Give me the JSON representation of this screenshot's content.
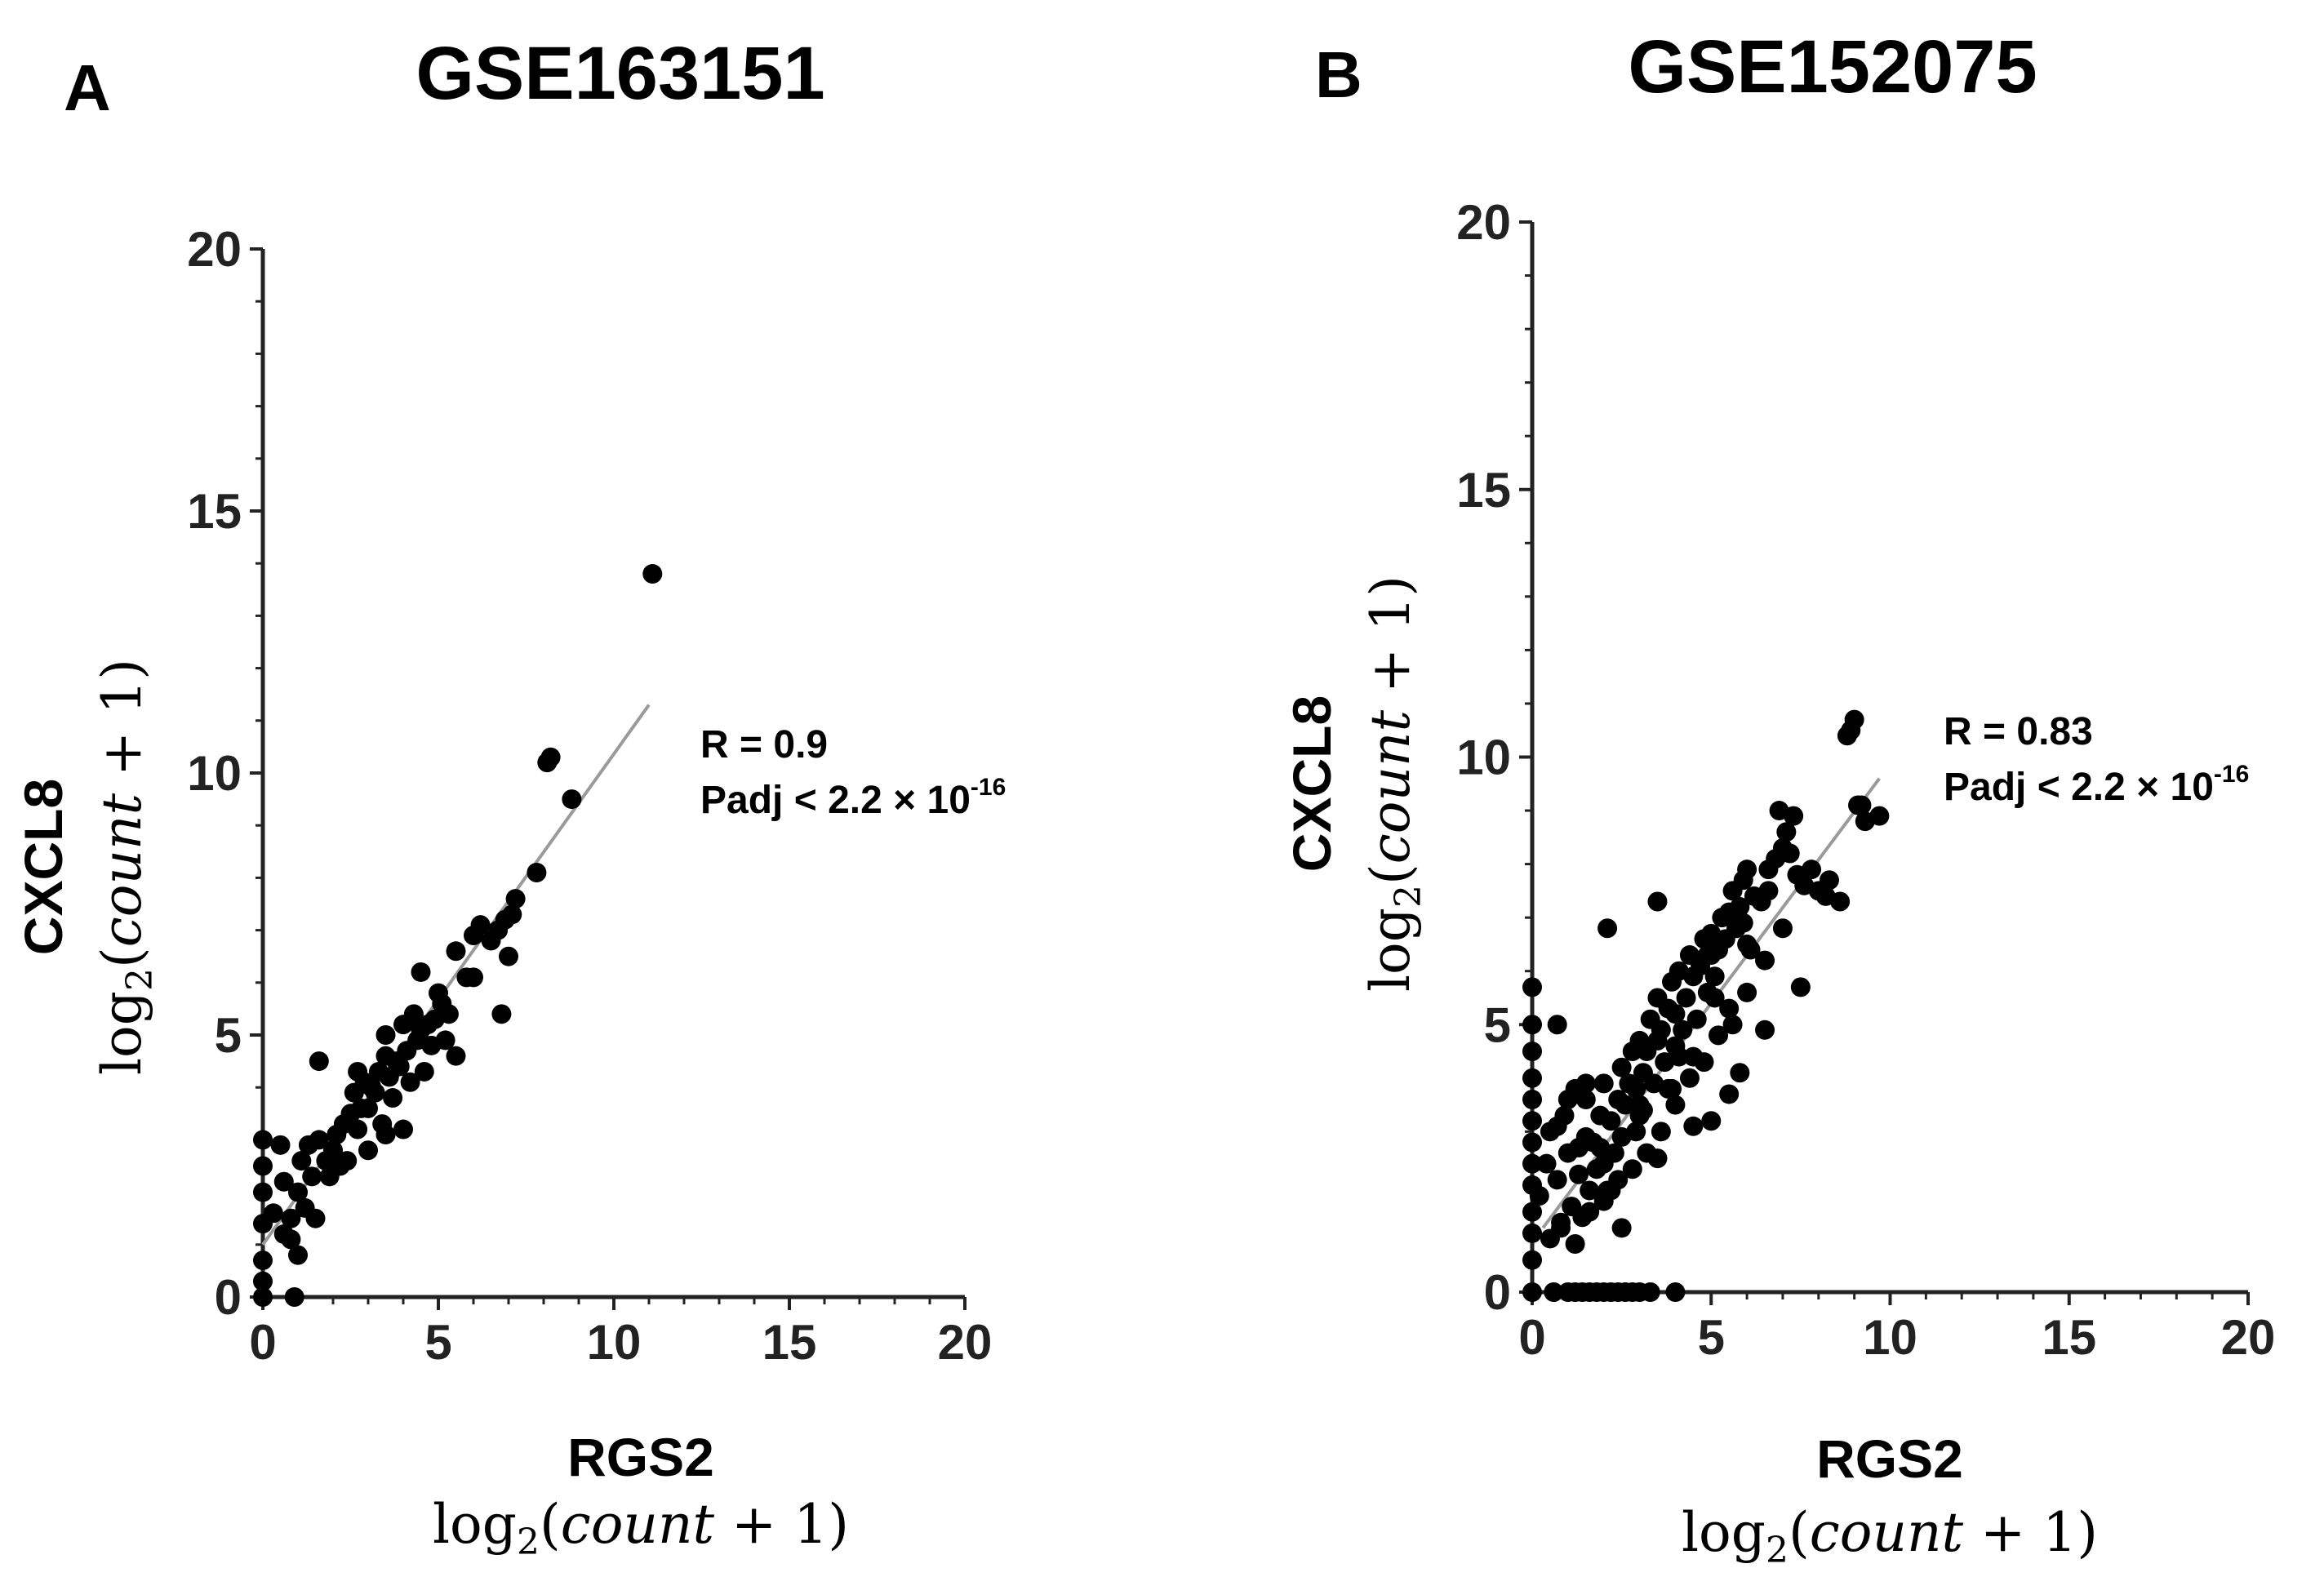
{
  "figure_labels": [
    "A",
    "B"
  ],
  "chart_data": [
    {
      "type": "scatter",
      "panel": "A",
      "title": "GSE163151",
      "xlabel": "RGS2",
      "ylabel": "CXCL8",
      "unit_label": "log2(count + 1)",
      "xlim": [
        0,
        20
      ],
      "ylim": [
        0,
        20
      ],
      "xticks": [
        0,
        5,
        10,
        15,
        20
      ],
      "yticks": [
        0,
        5,
        10,
        15,
        20
      ],
      "stats": {
        "r": "R = 0.9",
        "padj_base": "Padj < 2.2 × 10",
        "padj_exp": "-16"
      },
      "fit_line": {
        "x": [
          0,
          11
        ],
        "y": [
          1.0,
          11.3
        ]
      },
      "x": [
        0,
        0,
        0,
        0,
        0,
        0,
        0,
        0.3,
        0.5,
        0.6,
        0.8,
        1,
        1,
        1.1,
        1.2,
        1.3,
        1.4,
        1.5,
        1.6,
        1.8,
        1.9,
        2,
        2.1,
        2.2,
        2.3,
        2.4,
        2.5,
        2.6,
        2.7,
        2.8,
        2.9,
        3,
        3,
        3.1,
        3.2,
        3.3,
        3.4,
        3.5,
        3.5,
        3.6,
        3.7,
        3.8,
        3.9,
        4,
        4.1,
        4.2,
        4.3,
        4.4,
        4.5,
        4.6,
        4.7,
        4.8,
        4.9,
        5,
        5.1,
        5.2,
        5.3,
        5.5,
        5.8,
        6,
        6.2,
        6.5,
        6.7,
        6.9,
        7,
        7.1,
        1.6,
        2.7,
        3.5,
        4,
        4.5,
        5.5,
        6,
        6.8,
        7.2,
        7.8,
        8.1,
        8.2,
        8.8,
        11.1,
        0.9,
        0.6,
        0.8
      ],
      "y": [
        0,
        0.7,
        1.4,
        2,
        2.5,
        3,
        0.3,
        1.6,
        2.9,
        2.2,
        1.5,
        2,
        0.8,
        2.6,
        1.7,
        2.9,
        2.3,
        1.5,
        3,
        2.6,
        2.3,
        2.8,
        3.1,
        2.5,
        3.3,
        2.6,
        3.5,
        3.9,
        3.2,
        3.6,
        4.1,
        2.8,
        3.6,
        4,
        3.9,
        4.3,
        3.3,
        4.6,
        5,
        4.2,
        3.8,
        4.5,
        4.4,
        5.2,
        4.7,
        4.1,
        5.4,
        4.9,
        5.1,
        4.3,
        5.2,
        4.8,
        5.3,
        5.8,
        5.6,
        4.9,
        5.4,
        6.6,
        6.1,
        6.9,
        7.1,
        6.8,
        7,
        7.2,
        6.5,
        7.3,
        4.5,
        4.3,
        3.1,
        3.2,
        6.2,
        4.6,
        6.1,
        5.4,
        7.6,
        8.1,
        10.2,
        10.3,
        9.5,
        13.8,
        0,
        1.2,
        1.1
      ]
    },
    {
      "type": "scatter",
      "panel": "B",
      "title": "GSE152075",
      "xlabel": "RGS2",
      "ylabel": "CXCL8",
      "unit_label": "log2(count + 1)",
      "xlim": [
        0,
        20
      ],
      "ylim": [
        0,
        20
      ],
      "xticks": [
        0,
        5,
        10,
        15,
        20
      ],
      "yticks": [
        0,
        5,
        10,
        15,
        20
      ],
      "stats": {
        "r": "R = 0.83",
        "padj_base": "Padj < 2.2 × 10",
        "padj_exp": "-16"
      },
      "fit_line": {
        "x": [
          0.3,
          9.7
        ],
        "y": [
          1.2,
          9.6
        ]
      },
      "x": [
        0,
        0,
        0,
        0,
        0,
        0,
        0,
        0,
        0,
        0,
        0,
        0,
        0,
        0.6,
        1,
        1.2,
        1.4,
        1.6,
        1.8,
        2,
        2.2,
        2.4,
        2.6,
        2.8,
        3,
        3.3,
        4,
        0.2,
        0.4,
        0.5,
        0.7,
        0.8,
        0.9,
        1,
        1.1,
        1.2,
        1.3,
        1.4,
        1.5,
        1.5,
        1.6,
        1.7,
        1.8,
        1.9,
        2,
        2,
        2.1,
        2.2,
        2.3,
        2.4,
        2.5,
        2.5,
        2.6,
        2.7,
        2.8,
        2.9,
        3,
        3,
        3.1,
        3.2,
        3.3,
        3.4,
        3.5,
        3.5,
        3.6,
        3.7,
        3.8,
        3.9,
        4,
        4,
        4.1,
        4.2,
        4.3,
        4.4,
        4.5,
        4.5,
        4.6,
        4.7,
        4.8,
        4.9,
        5,
        5,
        5.1,
        5.2,
        5.3,
        5.4,
        5.5,
        5.5,
        5.6,
        5.7,
        5.8,
        5.9,
        6,
        6,
        6.2,
        6.4,
        6.6,
        6.8,
        7,
        7.2,
        7.4,
        7.6,
        7.8,
        8,
        8.3,
        8.6,
        0.5,
        0.8,
        1.2,
        1.6,
        2,
        2.4,
        2.8,
        3.2,
        3.6,
        4,
        4.4,
        4.8,
        5.2,
        5.6,
        6,
        6.5,
        7,
        1,
        1.5,
        2.5,
        3.5,
        4.5,
        5.5,
        6.5,
        7.5,
        8.2,
        1.3,
        2.2,
        3.1,
        4.1,
        5.1,
        6.1,
        7.1,
        0.7,
        1.9,
        2.9,
        3.9,
        4.9,
        5.9,
        6.9,
        3,
        3.8,
        5,
        5.8,
        6.6,
        7.3,
        8.8,
        8.9,
        9,
        9.1,
        9.7,
        9.2,
        9.3,
        2.1,
        3.5,
        0.7
      ],
      "y": [
        0,
        0.6,
        1.1,
        1.5,
        2,
        2.4,
        2.8,
        3.2,
        3.6,
        4,
        4.5,
        5,
        5.7,
        0,
        0,
        0,
        0,
        0,
        0,
        0,
        0,
        0,
        0,
        0,
        0,
        0,
        0,
        1.8,
        2.4,
        3,
        2.1,
        1.3,
        3.3,
        2.6,
        1.6,
        3.8,
        2.2,
        1.4,
        2.9,
        3.6,
        1.9,
        2.8,
        2.3,
        3.3,
        3.9,
        2.4,
        1.9,
        3.2,
        2.6,
        3.6,
        4.2,
        2.9,
        3.5,
        3.9,
        4.5,
        3.8,
        3.3,
        4.7,
        4.1,
        4.5,
        5.1,
        3.9,
        4.7,
        5.5,
        4.9,
        4.3,
        5.3,
        5.8,
        4.6,
        5.2,
        6,
        4.9,
        5.5,
        6.3,
        5.9,
        4.4,
        5.1,
        6.1,
        6.6,
        5.6,
        6.3,
        6.7,
        5.9,
        6.4,
        7,
        6.6,
        5.3,
        7.1,
        7.5,
        6.8,
        7.2,
        7.7,
        6.5,
        7.9,
        7.4,
        7.3,
        7.9,
        8.1,
        8.3,
        8.2,
        7.8,
        7.6,
        7.9,
        7.5,
        7.7,
        7.3,
        1,
        1.2,
        0.9,
        1.5,
        1.7,
        2.1,
        2.3,
        2.6,
        3,
        3.5,
        4,
        4.3,
        4.8,
        5,
        5.6,
        6.2,
        6.8,
        3.6,
        3.9,
        1.2,
        2.5,
        3.1,
        3.7,
        4.9,
        5.7,
        7.4,
        2.7,
        1.9,
        3.4,
        4.4,
        5.5,
        6.4,
        8.6,
        3.1,
        2.7,
        3,
        3.8,
        6.3,
        6.9,
        9,
        3.5,
        3.8,
        3.2,
        4.1,
        7.5,
        8.9,
        10.4,
        10.5,
        10.7,
        9.1,
        8.9,
        9.1,
        8.8,
        6.8,
        7.3,
        5
      ]
    }
  ]
}
